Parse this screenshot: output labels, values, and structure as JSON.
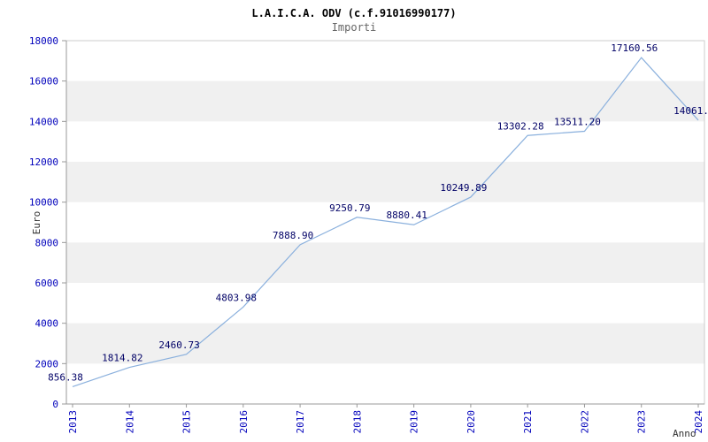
{
  "chart_data": {
    "type": "line",
    "title": "L.A.I.C.A. ODV (c.f.91016990177)",
    "subtitle": "Importi",
    "xlabel": "Anno",
    "ylabel": "Euro",
    "categories": [
      "2013",
      "2014",
      "2015",
      "2016",
      "2017",
      "2018",
      "2019",
      "2020",
      "2021",
      "2022",
      "2023",
      "2024"
    ],
    "values": [
      856.38,
      1814.82,
      2460.73,
      4803.98,
      7888.9,
      9250.79,
      8880.41,
      10249.89,
      13302.28,
      13511.2,
      17160.56,
      14061.0
    ],
    "point_labels": [
      "856.38",
      "1814.82",
      "2460.73",
      "4803.98",
      "7888.90",
      "9250.79",
      "8880.41",
      "10249.89",
      "13302.28",
      "13511.20",
      "17160.56",
      "14061."
    ],
    "ylim": [
      0,
      18000
    ],
    "ytick_step": 2000,
    "grid": "alternating-horizontal-bands",
    "legend": "none",
    "colors": {
      "line": "#8ab0dd",
      "band": "#f0f0f0",
      "tick_label": "#0000bb",
      "point_label": "#000066",
      "title": "#000000",
      "subtitle": "#666666",
      "axis_line": "#999999",
      "plot_border": "#cccccc",
      "axis_title": "#333333",
      "background": "#ffffff"
    }
  }
}
